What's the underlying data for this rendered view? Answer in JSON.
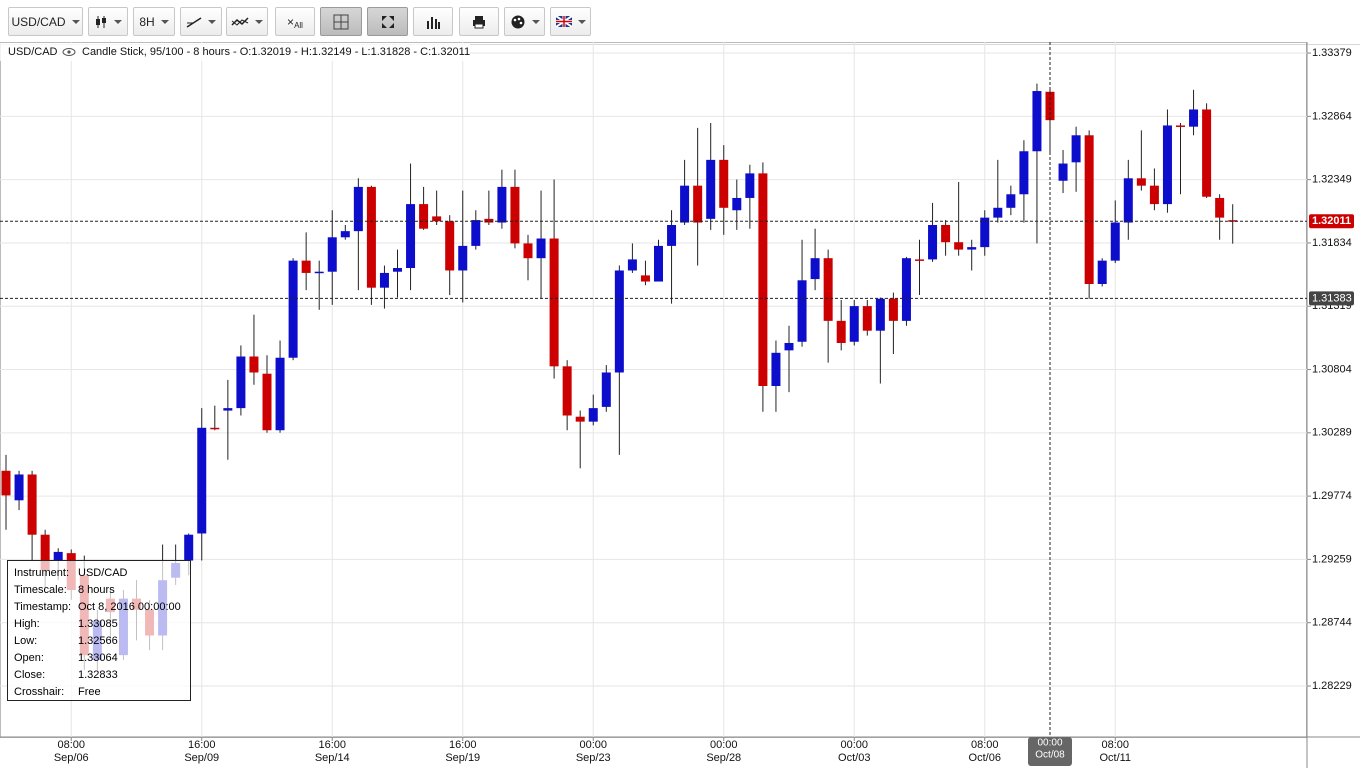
{
  "toolbar": {
    "symbol": "USD/CAD",
    "timeframe": "8H",
    "clear_label": "All"
  },
  "chart_data": {
    "type": "candlestick",
    "title": "USD/CAD",
    "subtitle": "Candle Stick, 95/100 - 8 hours - O:1.32019 - H:1.32149 - L:1.31828 - C:1.32011",
    "categories": [
      null,
      null,
      null,
      null,
      null,
      {
        "time": "08:00",
        "date": "Sep/06"
      },
      null,
      null,
      null,
      null,
      null,
      null,
      null,
      null,
      null,
      {
        "time": "16:00",
        "date": "Sep/09"
      },
      null,
      null,
      null,
      null,
      null,
      null,
      null,
      null,
      null,
      {
        "time": "16:00",
        "date": "Sep/14"
      },
      null,
      null,
      null,
      null,
      null,
      null,
      null,
      null,
      null,
      {
        "time": "16:00",
        "date": "Sep/19"
      },
      null,
      null,
      null,
      null,
      null,
      null,
      null,
      null,
      null,
      {
        "time": "00:00",
        "date": "Sep/23"
      },
      null,
      null,
      null,
      null,
      null,
      null,
      null,
      null,
      null,
      {
        "time": "00:00",
        "date": "Sep/28"
      },
      null,
      null,
      null,
      null,
      null,
      null,
      null,
      null,
      null,
      {
        "time": "00:00",
        "date": "Oct/03"
      },
      null,
      null,
      null,
      null,
      null,
      null,
      null,
      null,
      null,
      {
        "time": "08:00",
        "date": "Oct/06"
      },
      null,
      null,
      null,
      null,
      {
        "time": "00:00",
        "date": "Oct/08"
      },
      null,
      null,
      null,
      null,
      {
        "time": "08:00",
        "date": "Oct/11"
      },
      null,
      null,
      null,
      null,
      null,
      null,
      null,
      null,
      null
    ],
    "open": [
      1.2998,
      1.2974,
      1.2995,
      1.2946,
      1.2925,
      1.2931,
      1.2913,
      1.2844,
      1.2894,
      1.2848,
      1.2894,
      1.2885,
      1.2864,
      1.2911,
      1.2925,
      1.2947,
      1.3033,
      1.3047,
      1.3049,
      1.3091,
      1.3077,
      1.3031,
      1.309,
      1.3169,
      1.3159,
      1.316,
      1.3188,
      1.3193,
      1.3229,
      1.3147,
      1.316,
      1.3163,
      1.3215,
      1.3205,
      1.3201,
      1.3161,
      1.3181,
      1.3203,
      1.32,
      1.3229,
      1.3183,
      1.3171,
      1.3187,
      1.3083,
      1.3042,
      1.3038,
      1.305,
      1.3078,
      1.3161,
      1.3157,
      1.3152,
      1.3181,
      1.32,
      1.323,
      1.3203,
      1.3251,
      1.321,
      1.322,
      1.324,
      1.3067,
      1.3096,
      1.3103,
      1.3154,
      1.3171,
      1.312,
      1.3103,
      1.3132,
      1.3112,
      1.3138,
      1.312,
      1.317,
      1.317,
      1.3198,
      1.3184,
      1.3178,
      1.318,
      1.3204,
      1.3212,
      1.3223,
      1.3258,
      1.33064,
      1.3234,
      1.3249,
      1.3271,
      1.315,
      1.3169,
      1.32,
      1.3236,
      1.323,
      1.3215,
      1.3279,
      1.3278,
      1.3292,
      1.322,
      1.32019
    ],
    "high": [
      1.3011,
      1.2998,
      1.2998,
      1.295,
      1.2935,
      1.2934,
      1.2929,
      1.2885,
      1.2901,
      1.2901,
      1.2909,
      1.2893,
      1.2938,
      1.2938,
      1.2947,
      1.3049,
      1.3051,
      1.3072,
      1.31,
      1.3125,
      1.3092,
      1.3104,
      1.3171,
      1.3192,
      1.3169,
      1.321,
      1.3198,
      1.3236,
      1.323,
      1.3165,
      1.3178,
      1.3248,
      1.3229,
      1.3226,
      1.3206,
      1.3226,
      1.321,
      1.3226,
      1.3243,
      1.3243,
      1.319,
      1.3226,
      1.3235,
      1.3088,
      1.3047,
      1.306,
      1.3084,
      1.3165,
      1.3183,
      1.3169,
      1.3186,
      1.321,
      1.3251,
      1.3277,
      1.3281,
      1.3263,
      1.3235,
      1.3247,
      1.3249,
      1.3104,
      1.3116,
      1.3186,
      1.3195,
      1.3178,
      1.3137,
      1.3137,
      1.3137,
      1.3139,
      1.3143,
      1.3172,
      1.3186,
      1.3216,
      1.3202,
      1.3233,
      1.3186,
      1.321,
      1.3251,
      1.323,
      1.3267,
      1.3313,
      1.33085,
      1.3259,
      1.3278,
      1.3275,
      1.3171,
      1.3218,
      1.3251,
      1.3275,
      1.3244,
      1.3292,
      1.3281,
      1.3308,
      1.3297,
      1.3223,
      1.32149
    ],
    "low": [
      1.295,
      1.2966,
      1.2925,
      1.2901,
      1.2909,
      1.2893,
      1.2836,
      1.2836,
      1.286,
      1.2844,
      1.286,
      1.2852,
      1.2852,
      1.2905,
      1.2913,
      1.2925,
      1.3031,
      1.3007,
      1.3043,
      1.3068,
      1.3029,
      1.3029,
      1.3088,
      1.3145,
      1.3129,
      1.3133,
      1.3186,
      1.3145,
      1.3133,
      1.313,
      1.3139,
      1.3145,
      1.3194,
      1.3198,
      1.3141,
      1.3135,
      1.3178,
      1.3198,
      1.3195,
      1.3179,
      1.3153,
      1.3138,
      1.3073,
      1.3031,
      1.3,
      1.3035,
      1.3046,
      1.3011,
      1.3159,
      1.3149,
      1.3152,
      1.3134,
      1.3198,
      1.3165,
      1.3194,
      1.319,
      1.3194,
      1.3195,
      1.3046,
      1.3046,
      1.3062,
      1.3099,
      1.3145,
      1.3086,
      1.3096,
      1.31,
      1.3108,
      1.3069,
      1.3093,
      1.3116,
      1.3141,
      1.3168,
      1.3173,
      1.3173,
      1.3161,
      1.3173,
      1.32,
      1.3206,
      1.32,
      1.3183,
      1.32566,
      1.3224,
      1.3225,
      1.3138,
      1.3148,
      1.3167,
      1.3186,
      1.3226,
      1.321,
      1.3208,
      1.3223,
      1.3271,
      1.322,
      1.3186,
      1.31828
    ],
    "close": [
      1.2978,
      1.2995,
      1.2946,
      1.2917,
      1.2932,
      1.2901,
      1.2848,
      1.2876,
      1.2883,
      1.2894,
      1.2885,
      1.2864,
      1.2909,
      1.2923,
      1.2946,
      1.3033,
      1.3032,
      1.3049,
      1.3091,
      1.3078,
      1.3031,
      1.309,
      1.3169,
      1.3159,
      1.316,
      1.3188,
      1.3193,
      1.3229,
      1.3147,
      1.3159,
      1.3163,
      1.3215,
      1.3195,
      1.3201,
      1.3161,
      1.3181,
      1.3202,
      1.32,
      1.3229,
      1.3183,
      1.3171,
      1.3187,
      1.3083,
      1.3043,
      1.3038,
      1.3049,
      1.3078,
      1.3161,
      1.317,
      1.3152,
      1.3181,
      1.3198,
      1.323,
      1.32,
      1.3251,
      1.3212,
      1.322,
      1.324,
      1.3067,
      1.3094,
      1.3102,
      1.3153,
      1.3171,
      1.312,
      1.3102,
      1.3132,
      1.3112,
      1.3138,
      1.312,
      1.3171,
      1.3169,
      1.3198,
      1.3184,
      1.3178,
      1.318,
      1.3204,
      1.3212,
      1.3223,
      1.3258,
      1.3307,
      1.32833,
      1.3248,
      1.3271,
      1.315,
      1.3169,
      1.32,
      1.3236,
      1.323,
      1.3215,
      1.3279,
      1.3278,
      1.3292,
      1.3221,
      1.3204,
      1.32011
    ],
    "up_color": "#0d0dcc",
    "down_color": "#cc0000",
    "ylim": [
      1.27814,
      1.33469
    ],
    "yticks": [
      1.33379,
      1.32864,
      1.32349,
      1.31834,
      1.31319,
      1.30804,
      1.30289,
      1.29774,
      1.29259,
      1.28744,
      1.28229
    ],
    "grid": true,
    "last_price": 1.32011,
    "crosshair": {
      "category": 80,
      "price": 1.31383
    }
  },
  "info_box": {
    "rows": [
      [
        "Instrument:",
        "USD/CAD"
      ],
      [
        "Timescale:",
        "8 hours"
      ],
      [
        "Timestamp:",
        "Oct 8, 2016 00:00:00"
      ],
      [
        "High:",
        "1.33085"
      ],
      [
        "Low:",
        "1.32566"
      ],
      [
        "Open:",
        "1.33064"
      ],
      [
        "Close:",
        "1.32833"
      ],
      [
        "Crosshair:",
        "Free"
      ]
    ]
  }
}
